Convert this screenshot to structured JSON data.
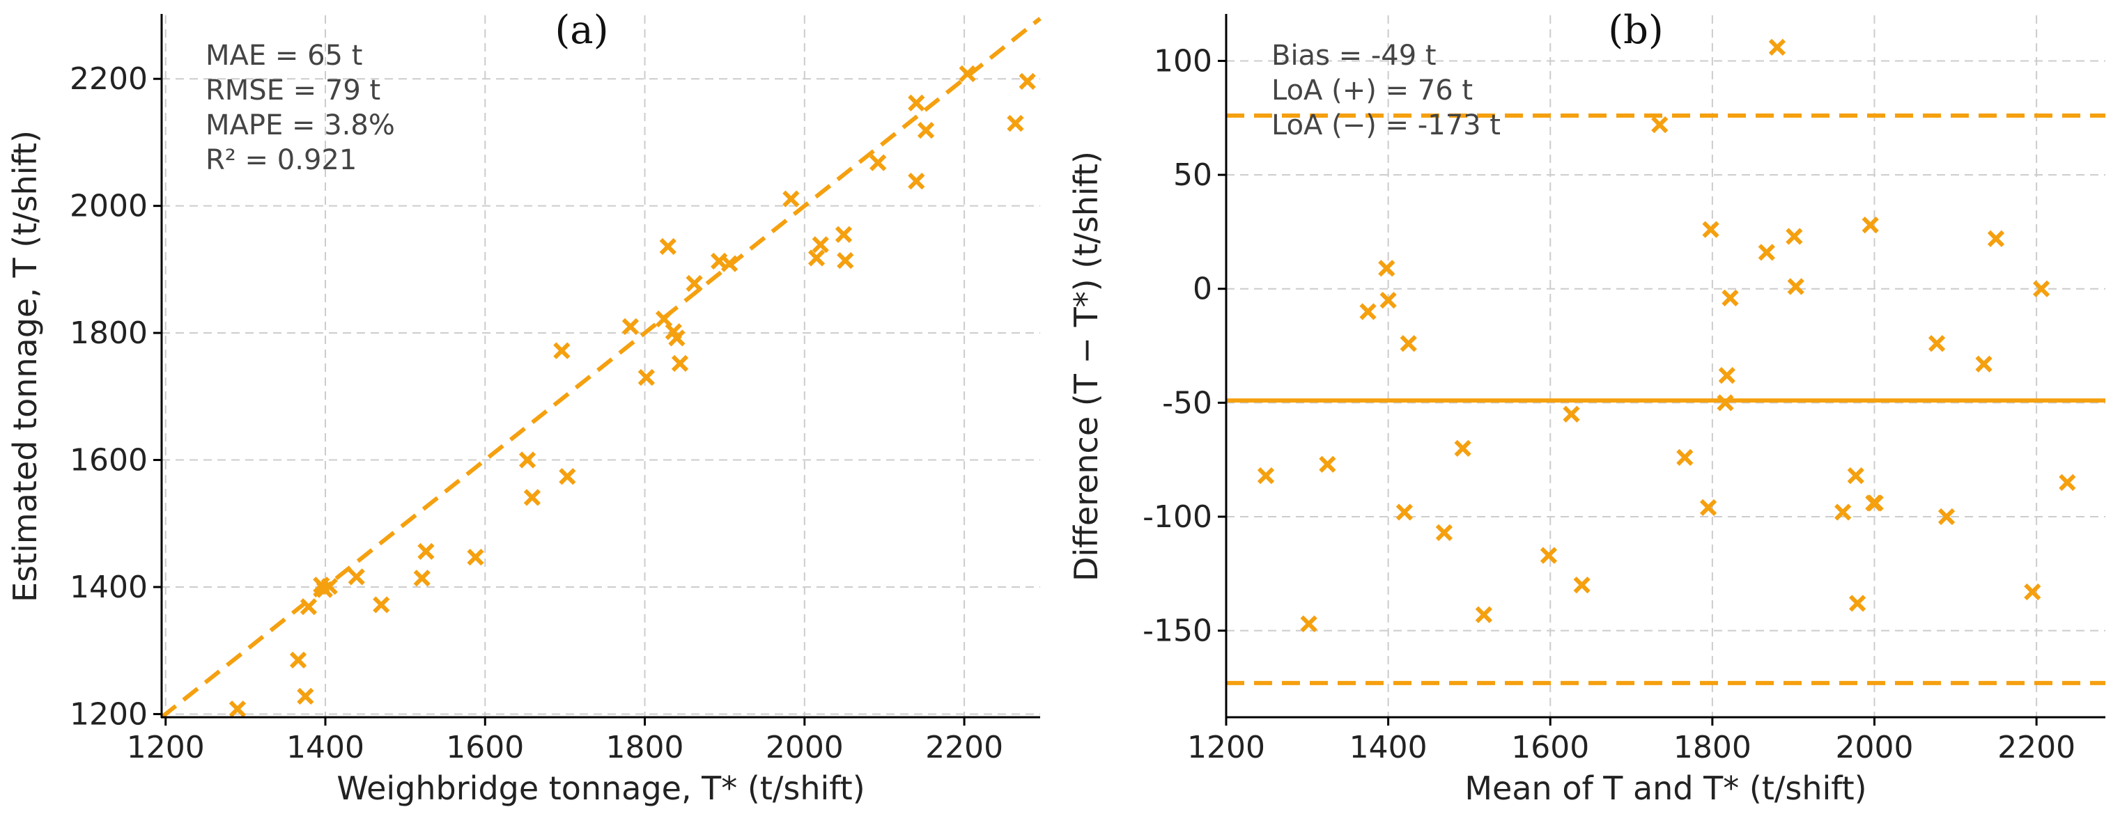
{
  "colors": {
    "accent": "#f5a00f",
    "axis": "#000000",
    "grid": "#cccccc"
  },
  "chart_data": [
    {
      "type": "scatter",
      "panel_label": "(a)",
      "title": "",
      "xlabel": "Weighbridge tonnage, T* (t/shift)",
      "ylabel": "Estimated tonnage, T (t/shift)",
      "xlim": [
        1195,
        2295
      ],
      "ylim": [
        1195,
        2300
      ],
      "xticks": [
        1200,
        1400,
        1600,
        1800,
        2000,
        2200
      ],
      "yticks": [
        1200,
        1400,
        1600,
        1800,
        2000,
        2200
      ],
      "grid": true,
      "reference_line": {
        "style": "dashed",
        "label": "1:1 line",
        "from": [
          1195,
          1195
        ],
        "to": [
          2295,
          2295
        ]
      },
      "annotations": [
        "MAE = 65 t",
        "RMSE = 79 t",
        "MAPE = 3.8%",
        "R² = 0.921"
      ],
      "series": [
        {
          "name": "shifts",
          "marker": "x",
          "x": [
            1290,
            1366,
            1375,
            1379,
            1395,
            1399,
            1405,
            1439,
            1470,
            1521,
            1526,
            1588,
            1653,
            1659,
            1696,
            1703,
            1782,
            1802,
            1824,
            1829,
            1836,
            1840,
            1844,
            1862,
            1893,
            1906,
            1983,
            2015,
            2020,
            2049,
            2051,
            2092,
            2140,
            2140,
            2152,
            2204,
            2264,
            2279
          ],
          "y": [
            1208,
            1285,
            1228,
            1369,
            1403,
            1396,
            1401,
            1416,
            1372,
            1414,
            1456,
            1447,
            1600,
            1541,
            1772,
            1574,
            1810,
            1730,
            1822,
            1936,
            1802,
            1792,
            1752,
            1878,
            1913,
            1909,
            2011,
            1918,
            1939,
            1955,
            1914,
            2068,
            2039,
            2162,
            2119,
            2208,
            2130,
            2196
          ]
        }
      ]
    },
    {
      "type": "scatter",
      "panel_label": "(b)",
      "title": "",
      "xlabel": "Mean of T and T* (t/shift)",
      "ylabel": "Difference (T − T*) (t/shift)",
      "xlim": [
        1200,
        2285
      ],
      "ylim": [
        -188,
        120
      ],
      "xticks": [
        1200,
        1400,
        1600,
        1800,
        2000,
        2200
      ],
      "yticks": [
        -150,
        -100,
        -50,
        0,
        50,
        100
      ],
      "grid": true,
      "horizontal_lines": [
        {
          "name": "bias",
          "y": -49,
          "style": "solid"
        },
        {
          "name": "loa-upper",
          "y": 76,
          "style": "dashed"
        },
        {
          "name": "loa-lower",
          "y": -173,
          "style": "dashed"
        }
      ],
      "annotations": [
        "Bias = -49 t",
        "LoA (+) = 76 t",
        "LoA (−) = -173 t"
      ],
      "series": [
        {
          "name": "differences",
          "marker": "x",
          "x": [
            1249,
            1302,
            1325,
            1375,
            1398,
            1400,
            1420,
            1425,
            1469,
            1492,
            1518,
            1598,
            1626,
            1639,
            1735,
            1766,
            1795,
            1798,
            1816,
            1818,
            1822,
            1867,
            1880,
            1901,
            1903,
            1961,
            1977,
            1979,
            1995,
            1999,
            2001,
            2077,
            2089,
            2135,
            2150,
            2195,
            2206,
            2238
          ],
          "y": [
            -82,
            -147,
            -77,
            -10,
            9,
            -5,
            -98,
            -24,
            -107,
            -70,
            -143,
            -117,
            -55,
            -130,
            72,
            -74,
            -96,
            26,
            -50,
            -38,
            -4,
            16,
            106,
            23,
            1,
            -98,
            -82,
            -138,
            28,
            -94,
            -94,
            -24,
            -100,
            -33,
            22,
            -133,
            0,
            -85
          ]
        }
      ]
    }
  ]
}
